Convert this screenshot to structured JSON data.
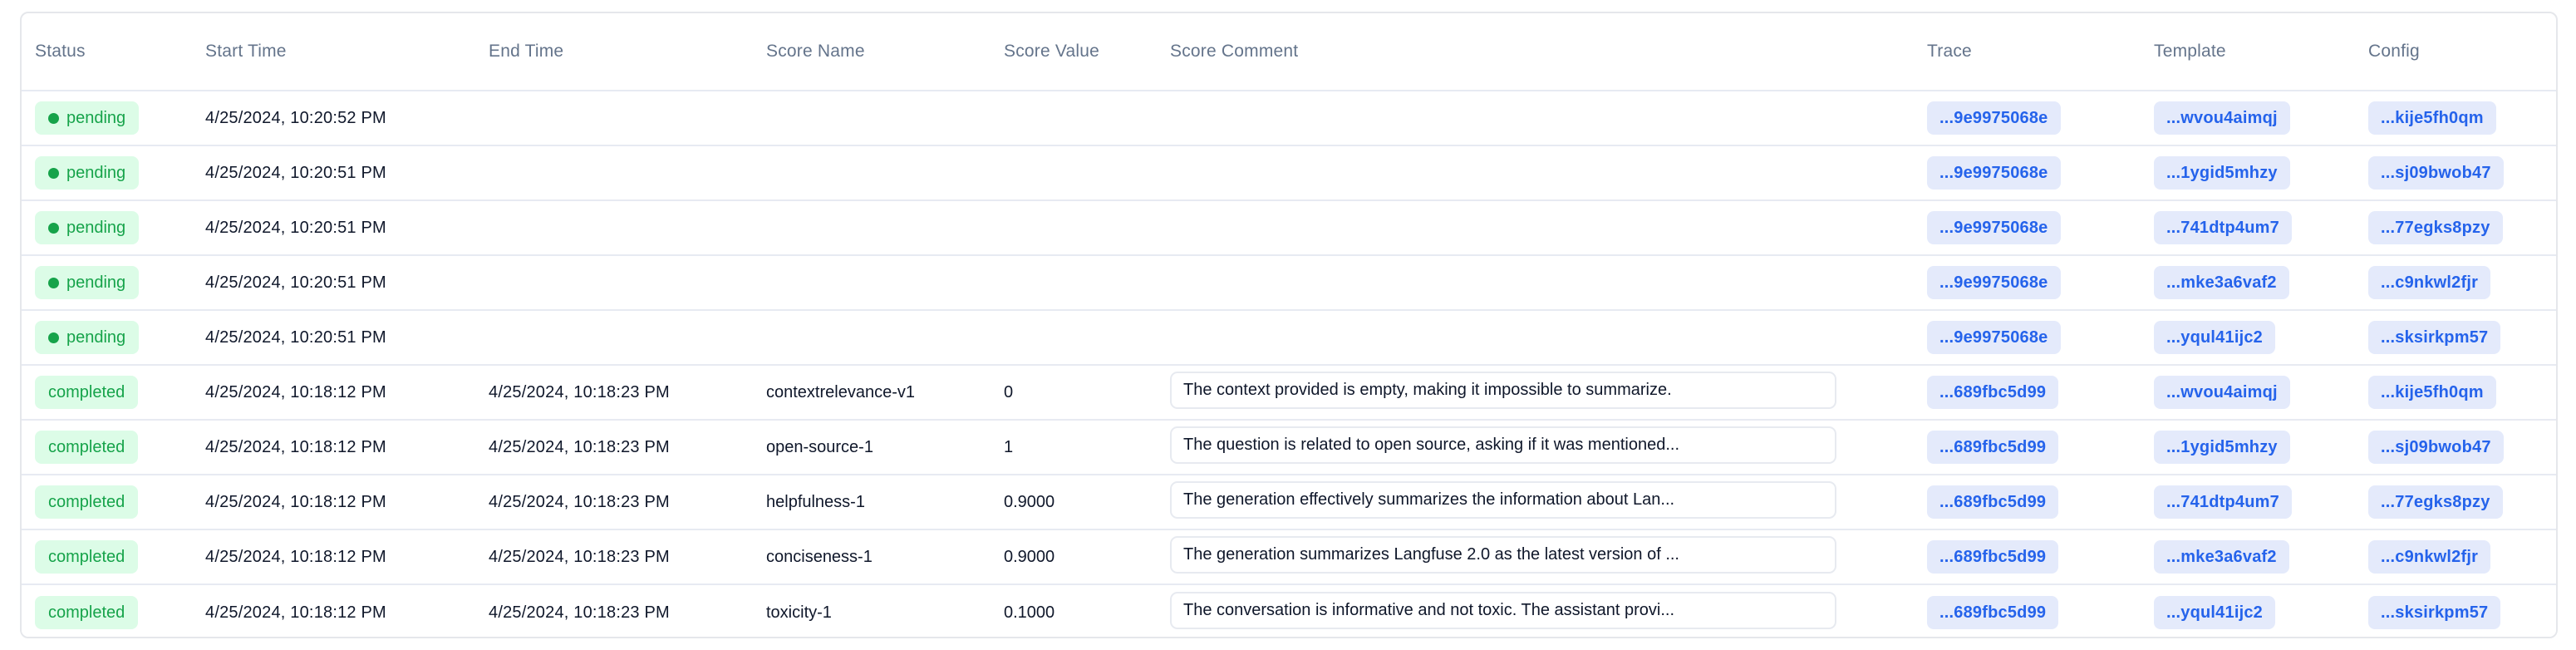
{
  "colors": {
    "status_badge_bg": "#dcfce7",
    "status_badge_text": "#16a34a",
    "id_pill_bg": "#e4eafb",
    "id_pill_text": "#2563eb",
    "header_text": "#64748b",
    "row_border": "#e7eaf2"
  },
  "table": {
    "columns": [
      "Status",
      "Start Time",
      "End Time",
      "Score Name",
      "Score Value",
      "Score Comment",
      "Trace",
      "Template",
      "Config"
    ],
    "rows": [
      {
        "status": "pending",
        "start_time": "4/25/2024, 10:20:52 PM",
        "end_time": "",
        "score_name": "",
        "score_value": "",
        "score_comment": "",
        "trace": "...9e9975068e",
        "template": "...wvou4aimqj",
        "config": "...kije5fh0qm"
      },
      {
        "status": "pending",
        "start_time": "4/25/2024, 10:20:51 PM",
        "end_time": "",
        "score_name": "",
        "score_value": "",
        "score_comment": "",
        "trace": "...9e9975068e",
        "template": "...1ygid5mhzy",
        "config": "...sj09bwob47"
      },
      {
        "status": "pending",
        "start_time": "4/25/2024, 10:20:51 PM",
        "end_time": "",
        "score_name": "",
        "score_value": "",
        "score_comment": "",
        "trace": "...9e9975068e",
        "template": "...741dtp4um7",
        "config": "...77egks8pzy"
      },
      {
        "status": "pending",
        "start_time": "4/25/2024, 10:20:51 PM",
        "end_time": "",
        "score_name": "",
        "score_value": "",
        "score_comment": "",
        "trace": "...9e9975068e",
        "template": "...mke3a6vaf2",
        "config": "...c9nkwl2fjr"
      },
      {
        "status": "pending",
        "start_time": "4/25/2024, 10:20:51 PM",
        "end_time": "",
        "score_name": "",
        "score_value": "",
        "score_comment": "",
        "trace": "...9e9975068e",
        "template": "...yqul41ijc2",
        "config": "...sksirkpm57"
      },
      {
        "status": "completed",
        "start_time": "4/25/2024, 10:18:12 PM",
        "end_time": "4/25/2024, 10:18:23 PM",
        "score_name": "contextrelevance-v1",
        "score_value": "0",
        "score_comment": "The context provided is empty, making it impossible to summarize.",
        "trace": "...689fbc5d99",
        "template": "...wvou4aimqj",
        "config": "...kije5fh0qm"
      },
      {
        "status": "completed",
        "start_time": "4/25/2024, 10:18:12 PM",
        "end_time": "4/25/2024, 10:18:23 PM",
        "score_name": "open-source-1",
        "score_value": "1",
        "score_comment": "The question is related to open source, asking if it was mentioned...",
        "trace": "...689fbc5d99",
        "template": "...1ygid5mhzy",
        "config": "...sj09bwob47"
      },
      {
        "status": "completed",
        "start_time": "4/25/2024, 10:18:12 PM",
        "end_time": "4/25/2024, 10:18:23 PM",
        "score_name": "helpfulness-1",
        "score_value": "0.9000",
        "score_comment": "The generation effectively summarizes the information about Lan...",
        "trace": "...689fbc5d99",
        "template": "...741dtp4um7",
        "config": "...77egks8pzy"
      },
      {
        "status": "completed",
        "start_time": "4/25/2024, 10:18:12 PM",
        "end_time": "4/25/2024, 10:18:23 PM",
        "score_name": "conciseness-1",
        "score_value": "0.9000",
        "score_comment": "The generation summarizes Langfuse 2.0 as the latest version of ...",
        "trace": "...689fbc5d99",
        "template": "...mke3a6vaf2",
        "config": "...c9nkwl2fjr"
      },
      {
        "status": "completed",
        "start_time": "4/25/2024, 10:18:12 PM",
        "end_time": "4/25/2024, 10:18:23 PM",
        "score_name": "toxicity-1",
        "score_value": "0.1000",
        "score_comment": "The conversation is informative and not toxic. The assistant provi...",
        "trace": "...689fbc5d99",
        "template": "...yqul41ijc2",
        "config": "...sksirkpm57"
      }
    ]
  }
}
